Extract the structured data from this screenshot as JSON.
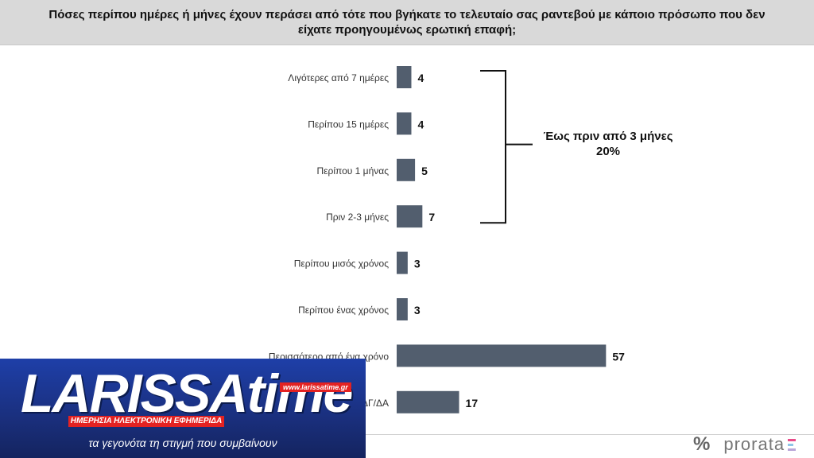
{
  "header": {
    "question": "Πόσες περίπου ημέρες ή μήνες έχουν περάσει από τότε που βγήκατε το τελευταίο σας ραντεβού με κάποιο πρόσωπο που δεν είχατε προηγουμένως ερωτική επαφή;"
  },
  "chart_data": {
    "type": "bar",
    "orientation": "horizontal",
    "categories": [
      "Λιγότερες από 7 ημέρες",
      "Περίπου 15 ημέρες",
      "Περίπου 1 μήνας",
      "Πριν 2-3 μήνες",
      "Περίπου μισός χρόνος",
      "Περίπου ένας χρόνος",
      "Περισσότερο από ένα χρόνο",
      "ΔΓ/ΔΑ"
    ],
    "values": [
      4,
      4,
      5,
      7,
      3,
      3,
      57,
      17
    ],
    "value_labels": [
      "4",
      "4",
      "5",
      "7",
      "3",
      "3",
      "57",
      "17"
    ],
    "bar_color": "#525e6e",
    "grid": false,
    "annotation": {
      "text_line1": "Έως πριν από 3 μήνες",
      "text_line2": "20%",
      "bracket_spans": [
        0,
        3
      ]
    }
  },
  "logo": {
    "brand": "LARISSAtime",
    "url": "www.larissatime.gr",
    "tagline": "ΗΜΕΡΗΣΙΑ ΗΛΕΚΤΡΟΝΙΚΗ ΕΦΗΜΕΡΙΔΑ",
    "slogan": "τα γεγονότα τη στιγμή που συμβαίνουν"
  },
  "footer": {
    "brand_symbol": "%",
    "brand_name": "prorata",
    "brand_colors": [
      "#e94c8a",
      "#8fc5e8",
      "#b9a6d8"
    ]
  }
}
